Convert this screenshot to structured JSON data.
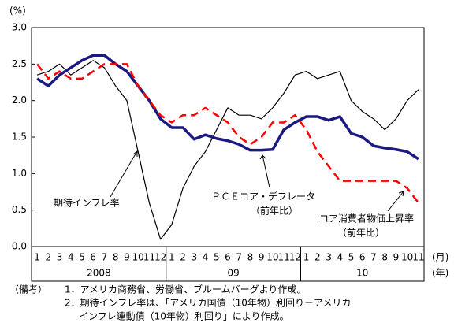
{
  "chart_data": {
    "type": "line",
    "y_unit": "(%)",
    "categories": [
      "1",
      "2",
      "3",
      "4",
      "5",
      "6",
      "7",
      "8",
      "9",
      "10",
      "11",
      "12",
      "1",
      "2",
      "3",
      "4",
      "5",
      "6",
      "7",
      "8",
      "9",
      "10",
      "11",
      "12",
      "1",
      "2",
      "3",
      "4",
      "5",
      "6",
      "7",
      "8",
      "9",
      "10",
      "11"
    ],
    "year_labels": [
      "2008",
      "09",
      "10"
    ],
    "x_unit_month": "(月)",
    "x_unit_year": "(年)",
    "ylim": [
      0,
      3
    ],
    "yticks": [
      {
        "value": 0,
        "label": "0.0"
      },
      {
        "value": 0.5,
        "label": "0.5"
      },
      {
        "value": 1,
        "label": "1.0"
      },
      {
        "value": 1.5,
        "label": "1.5"
      },
      {
        "value": 2,
        "label": "2.0"
      },
      {
        "value": 2.5,
        "label": "2.5"
      },
      {
        "value": 3,
        "label": "3.0"
      }
    ],
    "grid": false,
    "series": [
      {
        "name": "期待インフレ率",
        "color": "#000000",
        "style": "solid",
        "width": 1.2,
        "values": [
          2.35,
          2.4,
          2.5,
          2.35,
          2.45,
          2.55,
          2.45,
          2.2,
          2.0,
          1.3,
          0.6,
          0.1,
          0.3,
          0.8,
          1.1,
          1.3,
          1.6,
          1.9,
          1.8,
          1.8,
          1.75,
          1.9,
          2.1,
          2.35,
          2.4,
          2.3,
          2.35,
          2.4,
          2.0,
          1.85,
          1.75,
          1.6,
          1.75,
          2.0,
          2.15
        ]
      },
      {
        "name": "ＰＣＥコア・デフレータ",
        "note": "（前年比）",
        "color": "#1a1a80",
        "style": "solid",
        "width": 3.5,
        "values": [
          2.3,
          2.2,
          2.35,
          2.45,
          2.55,
          2.62,
          2.62,
          2.5,
          2.4,
          2.2,
          2.0,
          1.75,
          1.63,
          1.63,
          1.47,
          1.53,
          1.48,
          1.45,
          1.4,
          1.32,
          1.32,
          1.33,
          1.6,
          1.7,
          1.78,
          1.78,
          1.73,
          1.78,
          1.55,
          1.5,
          1.38,
          1.35,
          1.33,
          1.3,
          1.2
        ]
      },
      {
        "name": "コア消費者物価上昇率",
        "note": "（前年比）",
        "color": "#ff0000",
        "style": "dashed",
        "width": 2.5,
        "values": [
          2.5,
          2.3,
          2.4,
          2.3,
          2.3,
          2.4,
          2.5,
          2.5,
          2.5,
          2.2,
          2.0,
          1.8,
          1.7,
          1.8,
          1.8,
          1.9,
          1.8,
          1.7,
          1.5,
          1.4,
          1.5,
          1.7,
          1.7,
          1.8,
          1.6,
          1.3,
          1.1,
          0.9,
          0.9,
          0.9,
          0.9,
          0.9,
          0.9,
          0.8,
          0.6
        ]
      }
    ]
  },
  "notes": {
    "head": "（備考）",
    "lines": [
      "1．アメリカ商務省、労働省、ブルームバーグより作成。",
      "2．期待インフレ率は、「アメリカ国債（10年物）利回り－アメリカ",
      "インフレ連動債（10年物）利回り」により作成。"
    ]
  }
}
